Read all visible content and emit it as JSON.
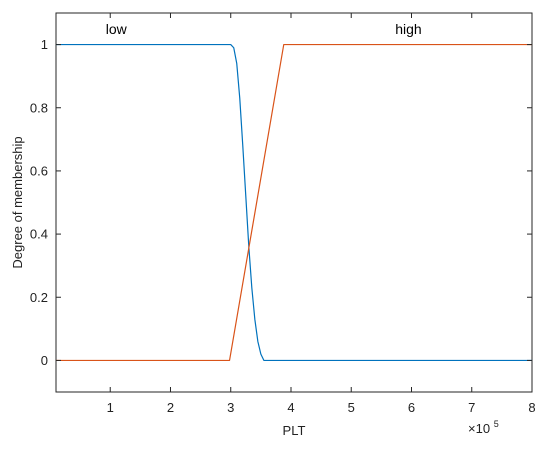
{
  "chart_data": {
    "type": "line",
    "xlabel": "PLT",
    "ylabel": "Degree of membership",
    "x_multiplier": {
      "prefix": "×10",
      "exponent": "5"
    },
    "xlim": [
      0.1,
      8
    ],
    "ylim": [
      -0.1,
      1.1
    ],
    "xticks": [
      1,
      2,
      3,
      4,
      5,
      6,
      7,
      8
    ],
    "yticks": [
      0,
      0.2,
      0.4,
      0.6,
      0.8,
      1
    ],
    "xtick_labels": [
      "1",
      "2",
      "3",
      "4",
      "5",
      "6",
      "7",
      "8"
    ],
    "ytick_labels": [
      "0",
      "0.2",
      "0.4",
      "0.6",
      "0.8",
      "1"
    ],
    "series": [
      {
        "name": "low",
        "color": "#0072BD",
        "x": [
          0.1,
          3.0,
          3.05,
          3.1,
          3.15,
          3.2,
          3.25,
          3.3,
          3.35,
          3.4,
          3.45,
          3.5,
          3.55,
          8.0
        ],
        "y": [
          1.0,
          1.0,
          0.99,
          0.94,
          0.83,
          0.68,
          0.52,
          0.36,
          0.23,
          0.13,
          0.06,
          0.02,
          0.0,
          0.0
        ]
      },
      {
        "name": "high",
        "color": "#D95319",
        "x": [
          0.1,
          2.98,
          3.88,
          8.0
        ],
        "y": [
          0.0,
          0.0,
          1.0,
          1.0
        ]
      }
    ],
    "grid": false,
    "legend": "none",
    "line_labels": [
      {
        "text": "low",
        "x": 1.1,
        "y": 1.05
      },
      {
        "text": "high",
        "x": 5.95,
        "y": 1.05
      }
    ]
  }
}
